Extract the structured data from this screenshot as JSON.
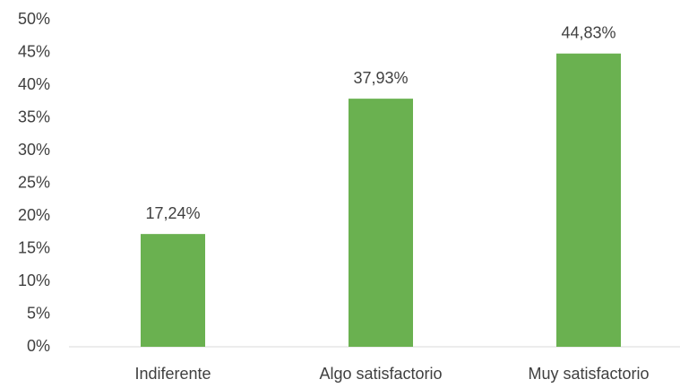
{
  "chart_data": {
    "type": "bar",
    "categories": [
      "Indiferente",
      "Algo satisfactorio",
      "Muy satisfactorio"
    ],
    "values": [
      17.24,
      37.93,
      44.83
    ],
    "value_labels": [
      "17,24%",
      "37,93%",
      "44,83%"
    ],
    "color": "#6ab150",
    "ylim": [
      0,
      50
    ],
    "yticks": [
      {
        "value": 0,
        "label": "0%"
      },
      {
        "value": 5,
        "label": "5%"
      },
      {
        "value": 10,
        "label": "10%"
      },
      {
        "value": 15,
        "label": "15%"
      },
      {
        "value": 20,
        "label": "20%"
      },
      {
        "value": 25,
        "label": "25%"
      },
      {
        "value": 30,
        "label": "30%"
      },
      {
        "value": 35,
        "label": "35%"
      },
      {
        "value": 40,
        "label": "40%"
      },
      {
        "value": 45,
        "label": "45%"
      },
      {
        "value": 50,
        "label": "50%"
      }
    ],
    "grid": false
  }
}
